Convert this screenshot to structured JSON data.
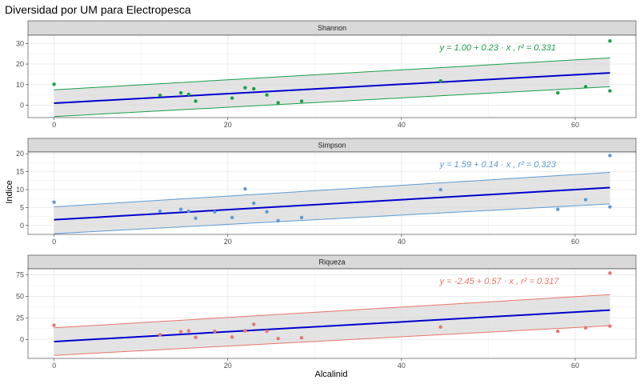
{
  "chart_data": {
    "type": "scatter",
    "title": "Diversidad por UM para Electropesca",
    "xlabel": "Alcalinid",
    "ylabel": "Indice",
    "xlim": [
      -3,
      67
    ],
    "xticks": [
      0,
      20,
      40,
      60
    ],
    "regression_line_color": "#0000CD",
    "band_color": "#D9D9D9",
    "panel_background": "#FFFFFF",
    "grid_color": "#EBEBEB",
    "strip_fill": "#D9D9D9",
    "panels": [
      {
        "strip": "Shannon",
        "color": "#18A048",
        "ylim": [
          -6,
          34
        ],
        "yticks": [
          0,
          10,
          20,
          30
        ],
        "equation": "y = 1.00 + 0.23 · x ,  r² = 0.331",
        "fit": {
          "intercept": 1.0,
          "slope": 0.23
        },
        "band": {
          "x": [
            0,
            64
          ],
          "lower": [
            -5.5,
            9.0
          ],
          "upper": [
            7.5,
            23.0
          ]
        },
        "points": [
          {
            "x": 0,
            "y": 10.2
          },
          {
            "x": 12.2,
            "y": 4.8
          },
          {
            "x": 14.6,
            "y": 6.0
          },
          {
            "x": 15.5,
            "y": 5.3
          },
          {
            "x": 16.3,
            "y": 2.0
          },
          {
            "x": 20.5,
            "y": 3.5
          },
          {
            "x": 22,
            "y": 8.5
          },
          {
            "x": 23,
            "y": 8.0
          },
          {
            "x": 24.5,
            "y": 5.0
          },
          {
            "x": 25.8,
            "y": 1.2
          },
          {
            "x": 28.5,
            "y": 2.0
          },
          {
            "x": 44.5,
            "y": 11.8
          },
          {
            "x": 58,
            "y": 6.0
          },
          {
            "x": 61.2,
            "y": 9.0
          },
          {
            "x": 64,
            "y": 31.2
          },
          {
            "x": 64,
            "y": 7.0
          }
        ]
      },
      {
        "strip": "Simpson",
        "color": "#5B9BD5",
        "ylim": [
          -2.5,
          20.5
        ],
        "yticks": [
          0,
          5,
          10,
          15,
          20
        ],
        "equation": "y = 1.59 + 0.14 · x ,  r² = 0.323",
        "fit": {
          "intercept": 1.59,
          "slope": 0.14
        },
        "band": {
          "x": [
            0,
            64
          ],
          "lower": [
            -2.3,
            6.0
          ],
          "upper": [
            5.2,
            14.8
          ]
        },
        "points": [
          {
            "x": 0,
            "y": 6.5
          },
          {
            "x": 12.2,
            "y": 4.0
          },
          {
            "x": 14.6,
            "y": 4.5
          },
          {
            "x": 15.5,
            "y": 4.0
          },
          {
            "x": 16.3,
            "y": 2.0
          },
          {
            "x": 18.5,
            "y": 3.8
          },
          {
            "x": 20.5,
            "y": 2.2
          },
          {
            "x": 22,
            "y": 10.2
          },
          {
            "x": 23,
            "y": 6.2
          },
          {
            "x": 24.5,
            "y": 3.8
          },
          {
            "x": 25.8,
            "y": 1.3
          },
          {
            "x": 28.5,
            "y": 2.2
          },
          {
            "x": 44.5,
            "y": 10.0
          },
          {
            "x": 58,
            "y": 4.5
          },
          {
            "x": 61.2,
            "y": 7.2
          },
          {
            "x": 64,
            "y": 19.5
          },
          {
            "x": 64,
            "y": 5.2
          }
        ]
      },
      {
        "strip": "Riqueza",
        "color": "#E8756B",
        "ylim": [
          -22,
          82
        ],
        "yticks": [
          0,
          25,
          50,
          75
        ],
        "equation": "y = -2.45 + 0.57 · x ,  r² = 0.317",
        "fit": {
          "intercept": -2.45,
          "slope": 0.57
        },
        "band": {
          "x": [
            0,
            64
          ],
          "lower": [
            -18.5,
            16.0
          ],
          "upper": [
            13.5,
            52.0
          ]
        },
        "points": [
          {
            "x": 0,
            "y": 16.5
          },
          {
            "x": 12.2,
            "y": 5.5
          },
          {
            "x": 14.6,
            "y": 9.0
          },
          {
            "x": 15.5,
            "y": 10.0
          },
          {
            "x": 16.3,
            "y": 2.5
          },
          {
            "x": 18.5,
            "y": 9.5
          },
          {
            "x": 20.5,
            "y": 2.8
          },
          {
            "x": 22,
            "y": 10.0
          },
          {
            "x": 23,
            "y": 17.5
          },
          {
            "x": 24.5,
            "y": 9.5
          },
          {
            "x": 25.8,
            "y": 1.0
          },
          {
            "x": 28.5,
            "y": 2.0
          },
          {
            "x": 44.5,
            "y": 14.5
          },
          {
            "x": 58,
            "y": 9.5
          },
          {
            "x": 61.2,
            "y": 13.5
          },
          {
            "x": 64,
            "y": 77.0
          },
          {
            "x": 64,
            "y": 15.5
          }
        ]
      }
    ]
  }
}
